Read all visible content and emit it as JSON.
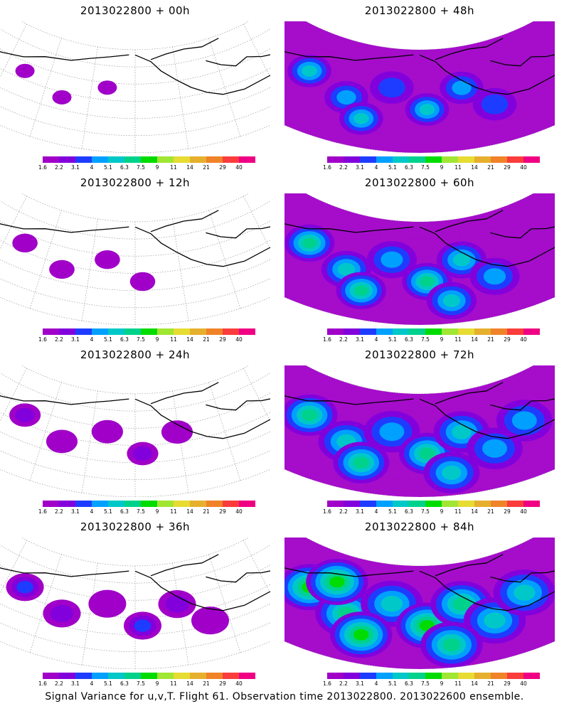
{
  "colorbar": {
    "colors": [
      "#a000c8",
      "#8200dc",
      "#1e3cff",
      "#00a0ff",
      "#00c8c8",
      "#00d28c",
      "#00dc00",
      "#a0e632",
      "#e6dc32",
      "#e6af2d",
      "#f08228",
      "#fa3c3c",
      "#f00082"
    ],
    "labels": [
      "1.6",
      "2.2",
      "3.1",
      "4",
      "5.1",
      "6.3",
      "7.5",
      "9",
      "11",
      "14",
      "21",
      "29",
      "40"
    ]
  },
  "panels": [
    {
      "id": "p00",
      "title": "2013022800 + 00h",
      "intensity": 0
    },
    {
      "id": "p48",
      "title": "2013022800 + 48h",
      "intensity": 4
    },
    {
      "id": "p12",
      "title": "2013022800 + 12h",
      "intensity": 1
    },
    {
      "id": "p60",
      "title": "2013022800 + 60h",
      "intensity": 5
    },
    {
      "id": "p24",
      "title": "2013022800 + 24h",
      "intensity": 2
    },
    {
      "id": "p72",
      "title": "2013022800 + 72h",
      "intensity": 6
    },
    {
      "id": "p36",
      "title": "2013022800 + 36h",
      "intensity": 3
    },
    {
      "id": "p84",
      "title": "2013022800 + 84h",
      "intensity": 7
    }
  ],
  "caption": "Signal Variance for u,v,T. Flight 61. Observation time 2013022800. 2013022600 ensemble."
}
